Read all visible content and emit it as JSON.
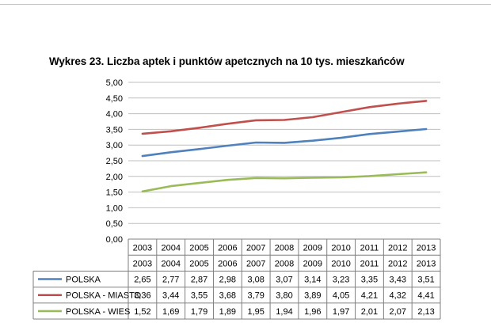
{
  "chart_data": {
    "type": "line",
    "title": "Wykres 23. Liczba aptek i punktów apetcznych na 10 tys. mieszkańców",
    "categories": [
      "2003",
      "2004",
      "2005",
      "2006",
      "2007",
      "2008",
      "2009",
      "2010",
      "2011",
      "2012",
      "2013"
    ],
    "category_rows": [
      [
        "2003",
        "2004",
        "2005",
        "2006",
        "2007",
        "2008",
        "2009",
        "2010",
        "2011",
        "2012",
        "2013"
      ],
      [
        "2003",
        "2004",
        "2005",
        "2006",
        "2007",
        "2008",
        "2009",
        "2010",
        "2011",
        "2012",
        "2013"
      ]
    ],
    "yticks": [
      "0,00",
      "0,50",
      "1,00",
      "1,50",
      "2,00",
      "2,50",
      "3,00",
      "3,50",
      "4,00",
      "4,50",
      "5,00"
    ],
    "ylim": [
      0,
      5
    ],
    "grid": true,
    "legend": "data-table",
    "series": [
      {
        "name": "POLSKA",
        "color": "#4f81bd",
        "values": [
          2.65,
          2.77,
          2.87,
          2.98,
          3.08,
          3.07,
          3.14,
          3.23,
          3.35,
          3.43,
          3.51
        ],
        "labels": [
          "2,65",
          "2,77",
          "2,87",
          "2,98",
          "3,08",
          "3,07",
          "3,14",
          "3,23",
          "3,35",
          "3,43",
          "3,51"
        ]
      },
      {
        "name": "POLSKA - MIASTO",
        "color": "#c0504d",
        "values": [
          3.36,
          3.44,
          3.55,
          3.68,
          3.79,
          3.8,
          3.89,
          4.05,
          4.21,
          4.32,
          4.41
        ],
        "labels": [
          "3,36",
          "3,44",
          "3,55",
          "3,68",
          "3,79",
          "3,80",
          "3,89",
          "4,05",
          "4,21",
          "4,32",
          "4,41"
        ]
      },
      {
        "name": "POLSKA - WIES",
        "color": "#9bbb59",
        "values": [
          1.52,
          1.69,
          1.79,
          1.89,
          1.95,
          1.94,
          1.96,
          1.97,
          2.01,
          2.07,
          2.13
        ],
        "labels": [
          "1,52",
          "1,69",
          "1,79",
          "1,89",
          "1,95",
          "1,94",
          "1,96",
          "1,97",
          "2,01",
          "2,07",
          "2,13"
        ]
      }
    ]
  }
}
